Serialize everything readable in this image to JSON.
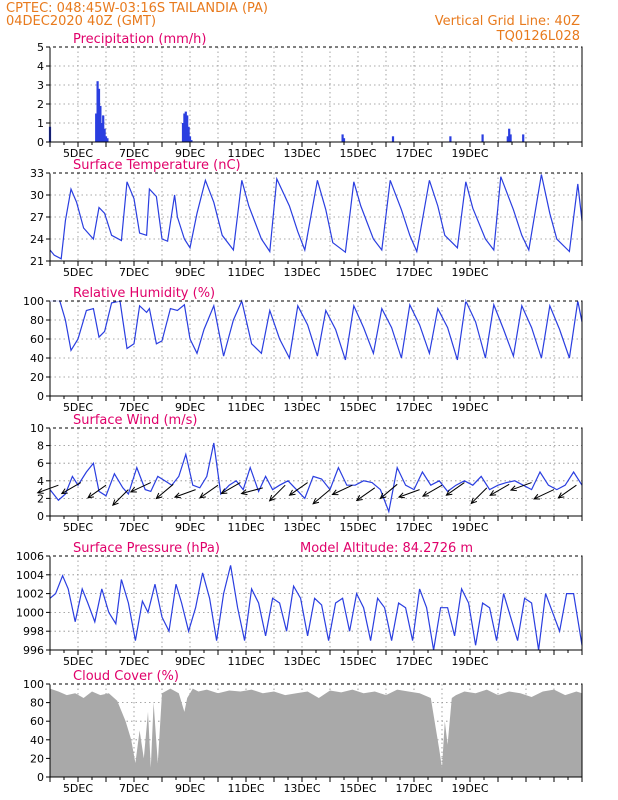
{
  "header": {
    "line1": "CPTEC:   048:45W-03:16S   TAILANDIA (PA)",
    "line2": "04DEC2020 40Z (GMT)",
    "right1": "Vertical Grid Line: 40Z",
    "right2": "TQ0126L028"
  },
  "colors": {
    "header": "#e87a1d",
    "title": "#e0006a",
    "line": "#2a3ee0",
    "bar": "#2a3ee0",
    "cloud": "#a9a9a9",
    "wind_arrow": "#000000",
    "grid": "#8c8c8c"
  },
  "chart_data": [
    {
      "id": "precip",
      "type": "bar",
      "title": "Precipitation (mm/h)",
      "ylim": [
        0,
        5
      ],
      "yticks": [
        0,
        1,
        2,
        3,
        4,
        5
      ],
      "x_tick_labels": [
        "5DEC",
        "7DEC",
        "9DEC",
        "11DEC",
        "13DEC",
        "15DEC",
        "17DEC",
        "19DEC"
      ],
      "x": [
        0.0,
        1.65,
        1.7,
        1.75,
        1.8,
        1.85,
        1.9,
        1.95,
        2.0,
        2.05,
        4.75,
        4.8,
        4.85,
        4.9,
        4.95,
        5.0,
        5.05,
        10.45,
        10.5,
        12.25,
        14.3,
        16.35,
        16.4,
        16.45,
        15.45,
        16.9
      ],
      "values": [
        0.8,
        1.5,
        3.2,
        2.8,
        1.9,
        1.0,
        1.4,
        0.7,
        0.3,
        0.2,
        1.0,
        1.5,
        1.6,
        1.4,
        0.8,
        0.3,
        0.1,
        0.4,
        0.2,
        0.3,
        0.3,
        0.3,
        0.7,
        0.4,
        0.4,
        0.4
      ]
    },
    {
      "id": "temp",
      "type": "line",
      "title": "Surface Temperature (nC)",
      "ylim": [
        21,
        33
      ],
      "yticks": [
        21,
        24,
        27,
        30,
        33
      ],
      "x_tick_labels": [
        "5DEC",
        "7DEC",
        "9DEC",
        "11DEC",
        "13DEC",
        "15DEC",
        "17DEC",
        "19DEC"
      ],
      "x": [
        0.0,
        0.15,
        0.4,
        0.55,
        0.75,
        0.95,
        1.2,
        1.55,
        1.75,
        1.95,
        2.2,
        2.55,
        2.75,
        3.0,
        3.2,
        3.45,
        3.55,
        3.8,
        4.0,
        4.2,
        4.45,
        4.55,
        4.8,
        5.0,
        5.25,
        5.55,
        5.85,
        6.15,
        6.55,
        6.85,
        7.1,
        7.55,
        7.85,
        8.1,
        8.55,
        8.85,
        9.1,
        9.55,
        9.85,
        10.1,
        10.55,
        10.85,
        11.1,
        11.55,
        11.85,
        12.15,
        12.55,
        12.85,
        13.1,
        13.55,
        13.85,
        14.1,
        14.55,
        14.85,
        15.1,
        15.55,
        15.85,
        16.1,
        16.55,
        16.85,
        17.1,
        17.55,
        17.85,
        18.1,
        18.55,
        18.85,
        19.0
      ],
      "values": [
        22.5,
        21.8,
        21.3,
        26.5,
        30.8,
        29.0,
        25.5,
        24.0,
        28.3,
        27.5,
        24.5,
        23.8,
        31.8,
        29.5,
        24.8,
        24.5,
        30.8,
        29.8,
        24.0,
        23.7,
        30.0,
        27.0,
        24.0,
        22.8,
        27.5,
        32.0,
        29.0,
        24.5,
        22.5,
        32.0,
        28.5,
        24.0,
        22.3,
        32.2,
        28.5,
        25.0,
        22.5,
        32.0,
        28.0,
        23.5,
        22.2,
        31.8,
        28.5,
        24.0,
        22.5,
        32.0,
        28.0,
        24.5,
        22.3,
        32.0,
        28.5,
        24.5,
        22.8,
        31.8,
        28.2,
        24.0,
        22.5,
        32.5,
        28.0,
        24.5,
        22.5,
        32.8,
        27.5,
        24.0,
        22.3,
        31.5,
        26.5
      ]
    },
    {
      "id": "rh",
      "type": "line",
      "title": "Relative Humidity (%)",
      "ylim": [
        0,
        100
      ],
      "yticks": [
        0,
        20,
        40,
        60,
        80,
        100
      ],
      "x_tick_labels": [
        "5DEC",
        "7DEC",
        "9DEC",
        "11DEC",
        "13DEC",
        "15DEC",
        "17DEC",
        "19DEC"
      ],
      "x": [
        0.0,
        0.35,
        0.55,
        0.75,
        1.0,
        1.3,
        1.55,
        1.75,
        1.95,
        2.2,
        2.5,
        2.75,
        3.0,
        3.2,
        3.45,
        3.55,
        3.8,
        4.0,
        4.3,
        4.55,
        4.8,
        5.0,
        5.25,
        5.5,
        5.85,
        6.2,
        6.55,
        6.85,
        7.2,
        7.55,
        7.85,
        8.2,
        8.55,
        8.85,
        9.2,
        9.55,
        9.85,
        10.2,
        10.55,
        10.85,
        11.2,
        11.55,
        11.85,
        12.2,
        12.55,
        12.85,
        13.2,
        13.55,
        13.85,
        14.2,
        14.55,
        14.85,
        15.2,
        15.55,
        15.85,
        16.2,
        16.55,
        16.85,
        17.2,
        17.55,
        17.85,
        18.2,
        18.55,
        18.85,
        19.0
      ],
      "values": [
        100,
        100,
        80,
        48,
        60,
        90,
        92,
        62,
        68,
        98,
        100,
        50,
        55,
        95,
        88,
        92,
        55,
        58,
        92,
        90,
        96,
        60,
        45,
        70,
        95,
        42,
        80,
        100,
        55,
        45,
        90,
        60,
        40,
        95,
        75,
        42,
        90,
        70,
        38,
        95,
        72,
        45,
        92,
        72,
        40,
        96,
        75,
        45,
        92,
        72,
        38,
        100,
        78,
        40,
        96,
        70,
        42,
        95,
        72,
        40,
        95,
        70,
        40,
        100,
        78
      ]
    },
    {
      "id": "wind",
      "type": "line",
      "title": "Surface Wind (m/s)",
      "ylim": [
        0,
        10
      ],
      "yticks": [
        0,
        2,
        4,
        6,
        8,
        10
      ],
      "x_tick_labels": [
        "5DEC",
        "7DEC",
        "9DEC",
        "11DEC",
        "13DEC",
        "15DEC",
        "17DEC",
        "19DEC"
      ],
      "x": [
        0.0,
        0.3,
        0.55,
        0.8,
        1.0,
        1.3,
        1.55,
        1.75,
        2.0,
        2.3,
        2.6,
        2.8,
        3.1,
        3.4,
        3.6,
        3.85,
        4.1,
        4.35,
        4.6,
        4.85,
        5.1,
        5.35,
        5.6,
        5.85,
        6.1,
        6.4,
        6.65,
        6.9,
        7.15,
        7.45,
        7.7,
        7.95,
        8.2,
        8.5,
        8.8,
        9.1,
        9.4,
        9.7,
        10.0,
        10.3,
        10.6,
        10.9,
        11.2,
        11.5,
        11.8,
        12.1,
        12.4,
        12.7,
        13.0,
        13.3,
        13.6,
        13.9,
        14.2,
        14.5,
        14.8,
        15.1,
        15.4,
        15.7,
        16.0,
        16.3,
        16.6,
        16.9,
        17.2,
        17.5,
        17.8,
        18.1,
        18.4,
        18.7,
        19.0
      ],
      "values": [
        3.0,
        1.8,
        2.5,
        4.5,
        3.5,
        5.0,
        6.0,
        2.8,
        2.3,
        4.8,
        3.2,
        2.5,
        5.5,
        3.0,
        2.8,
        4.5,
        4.0,
        3.5,
        4.5,
        7.0,
        3.5,
        3.2,
        4.5,
        8.3,
        2.5,
        3.5,
        4.0,
        3.0,
        5.5,
        2.8,
        4.5,
        3.0,
        3.5,
        4.0,
        3.0,
        2.0,
        4.5,
        4.2,
        3.0,
        5.5,
        3.5,
        3.5,
        4.0,
        3.8,
        3.0,
        0.5,
        5.5,
        3.5,
        3.0,
        5.0,
        3.5,
        4.0,
        2.8,
        3.5,
        4.0,
        3.5,
        4.5,
        3.0,
        3.5,
        3.8,
        4.0,
        3.5,
        3.0,
        5.0,
        3.5,
        3.0,
        3.5,
        5.0,
        3.5
      ],
      "arrows_x": [
        0.3,
        1.1,
        2.0,
        2.8,
        3.6,
        4.4,
        5.2,
        6.0,
        6.8,
        7.6,
        8.4,
        9.2,
        10.0,
        10.8,
        11.6,
        12.4,
        13.2,
        14.0,
        14.8,
        15.6,
        16.4,
        17.2,
        18.0,
        18.8
      ],
      "arrows_y": [
        3.5,
        3.8,
        3.5,
        3.0,
        3.8,
        3.6,
        3.0,
        3.5,
        3.8,
        3.2,
        3.5,
        3.8,
        3.0,
        3.5,
        3.2,
        3.6,
        3.0,
        3.5,
        3.8,
        3.2,
        3.6,
        3.8,
        3.0,
        3.5
      ],
      "arrows_dir_deg": [
        200,
        210,
        215,
        225,
        205,
        220,
        200,
        215,
        210,
        195,
        225,
        215,
        220,
        205,
        215,
        220,
        200,
        210,
        215,
        225,
        210,
        200,
        205,
        215
      ]
    },
    {
      "id": "press",
      "type": "line",
      "title": "Surface Pressure (hPa)",
      "annotation": "Model Altitude: 84.2726 m",
      "ylim": [
        996,
        1006
      ],
      "yticks": [
        996,
        998,
        1000,
        1002,
        1004,
        1006
      ],
      "x_tick_labels": [
        "5DEC",
        "7DEC",
        "9DEC",
        "11DEC",
        "13DEC",
        "15DEC",
        "17DEC",
        "19DEC"
      ],
      "x": [
        0.0,
        0.2,
        0.45,
        0.65,
        0.9,
        1.15,
        1.35,
        1.6,
        1.85,
        2.1,
        2.35,
        2.55,
        2.8,
        3.05,
        3.3,
        3.5,
        3.75,
        4.0,
        4.25,
        4.5,
        4.7,
        4.95,
        5.2,
        5.45,
        5.7,
        5.95,
        6.2,
        6.45,
        6.7,
        6.95,
        7.2,
        7.45,
        7.7,
        7.95,
        8.2,
        8.45,
        8.7,
        8.95,
        9.2,
        9.45,
        9.7,
        9.95,
        10.2,
        10.45,
        10.7,
        10.95,
        11.2,
        11.45,
        11.7,
        11.95,
        12.2,
        12.45,
        12.7,
        12.95,
        13.2,
        13.45,
        13.7,
        13.95,
        14.2,
        14.45,
        14.7,
        14.95,
        15.2,
        15.45,
        15.7,
        15.95,
        16.2,
        16.45,
        16.7,
        16.95,
        17.2,
        17.45,
        17.7,
        17.95,
        18.2,
        18.45,
        18.7,
        19.0
      ],
      "values": [
        1001.5,
        1002.0,
        1003.9,
        1002.5,
        999.0,
        1002.5,
        1001.0,
        999.0,
        1002.5,
        1000.0,
        998.8,
        1003.5,
        1001.0,
        997.0,
        1001.2,
        1000.0,
        1003.0,
        999.5,
        998.0,
        1003.0,
        1001.0,
        998.0,
        1000.5,
        1004.2,
        1001.5,
        997.0,
        1002.0,
        1005.0,
        1000.5,
        997.0,
        1002.5,
        1001.0,
        997.5,
        1001.5,
        1001.0,
        998.0,
        1002.8,
        1001.5,
        997.5,
        1001.5,
        1000.8,
        997.0,
        1001.0,
        1001.5,
        998.0,
        1002.0,
        1000.5,
        997.0,
        1001.5,
        1000.5,
        997.0,
        1001.0,
        1000.5,
        997.0,
        1002.5,
        1000.5,
        996.0,
        1000.5,
        1000.5,
        997.5,
        1002.5,
        1001.0,
        996.5,
        1001.0,
        1000.5,
        997.0,
        1002.0,
        999.5,
        997.0,
        1001.5,
        1001.0,
        996.0,
        1002.0,
        1000.0,
        998.0,
        1002.0,
        1002.0,
        996.5
      ]
    },
    {
      "id": "cloud",
      "type": "area",
      "title": "Cloud Cover (%)",
      "ylim": [
        0,
        100
      ],
      "yticks": [
        0,
        20,
        40,
        60,
        80,
        100
      ],
      "x_tick_labels": [
        "5DEC",
        "7DEC",
        "9DEC",
        "11DEC",
        "13DEC",
        "15DEC",
        "17DEC",
        "19DEC"
      ],
      "x": [
        0.0,
        0.3,
        0.6,
        0.9,
        1.2,
        1.5,
        1.8,
        2.1,
        2.4,
        2.7,
        2.9,
        3.05,
        3.2,
        3.35,
        3.5,
        3.6,
        3.7,
        3.85,
        4.0,
        4.3,
        4.6,
        4.8,
        4.9,
        5.1,
        5.3,
        5.6,
        6.0,
        6.4,
        6.8,
        7.2,
        7.6,
        8.0,
        8.4,
        8.8,
        9.2,
        9.6,
        10.0,
        10.4,
        10.8,
        11.2,
        11.6,
        12.0,
        12.4,
        12.8,
        13.2,
        13.6,
        13.9,
        14.0,
        14.1,
        14.2,
        14.35,
        14.5,
        14.8,
        15.2,
        15.6,
        16.0,
        16.4,
        16.8,
        17.2,
        17.6,
        18.0,
        18.4,
        18.8,
        19.0
      ],
      "values": [
        95,
        92,
        88,
        90,
        85,
        92,
        88,
        90,
        82,
        60,
        40,
        15,
        50,
        20,
        70,
        10,
        80,
        15,
        90,
        95,
        90,
        70,
        85,
        95,
        92,
        94,
        90,
        93,
        92,
        94,
        90,
        92,
        88,
        90,
        92,
        85,
        93,
        91,
        94,
        90,
        92,
        88,
        94,
        92,
        90,
        85,
        30,
        10,
        60,
        35,
        85,
        88,
        92,
        90,
        94,
        88,
        92,
        90,
        86,
        92,
        94,
        88,
        92,
        90
      ]
    }
  ]
}
